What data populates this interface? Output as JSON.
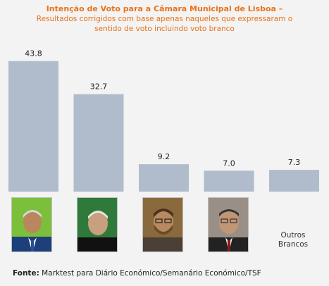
{
  "chart_data": {
    "type": "bar",
    "title": "Intenção de Voto para a Câmara Municipal de Lisboa –",
    "subtitle_lines": [
      "Resultados corrigidos com base apenas naqueles que expressaram o",
      "sentido de voto incluindo voto branco"
    ],
    "categories": [
      "",
      "",
      "",
      "",
      "Outros Brancos"
    ],
    "values": [
      43.8,
      32.7,
      9.2,
      7.0,
      7.3
    ],
    "value_labels": [
      "43.8",
      "32.7",
      "9.2",
      "7.0",
      "7.3"
    ],
    "ylim": [
      0,
      50
    ],
    "grid": false,
    "bar_color": "#b0bccb"
  },
  "others": {
    "line1": "Outros",
    "line2": "Brancos"
  },
  "source": {
    "label": "Fonte:",
    "text": " Marktest para Diário Económico/Semanário Económico/TSF"
  },
  "colors": {
    "title": "#e8731a",
    "background": "#f3f3f3"
  }
}
